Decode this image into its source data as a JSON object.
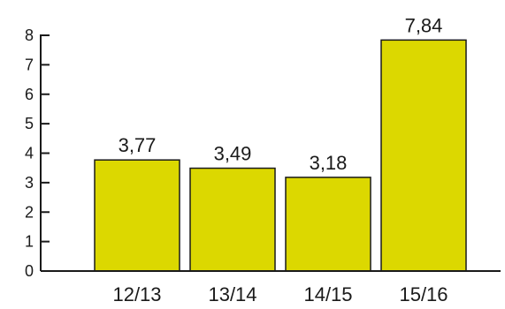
{
  "chart_data": {
    "type": "bar",
    "categories": [
      "12/13",
      "13/14",
      "14/15",
      "15/16"
    ],
    "values": [
      3.77,
      3.49,
      3.18,
      7.84
    ],
    "data_labels": [
      "3,77",
      "3,49",
      "3,18",
      "7,84"
    ],
    "y_ticks": [
      0,
      1,
      2,
      3,
      4,
      5,
      6,
      7,
      8
    ],
    "ylim": [
      0,
      8
    ],
    "grid": false,
    "legend": "none",
    "bar_color": "#dcd800",
    "bar_edge_color": "#1a1a1a"
  }
}
